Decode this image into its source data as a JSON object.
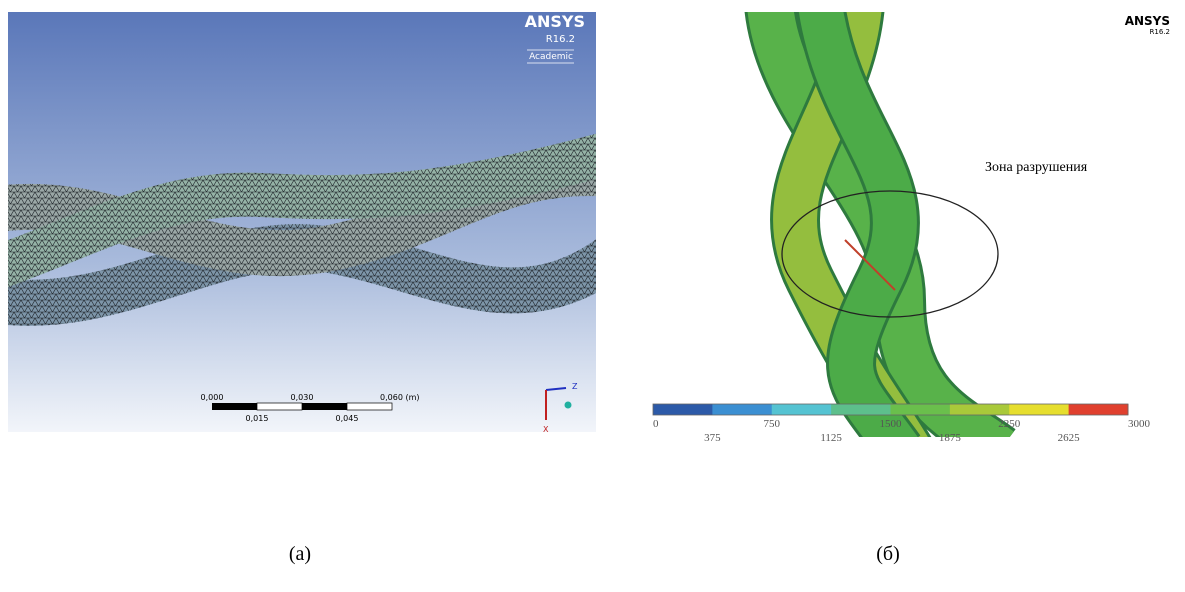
{
  "panel_a": {
    "logo": "ANSYS",
    "version": "R16.2",
    "license": "Academic",
    "scale_bar": {
      "top_labels": [
        "0,000",
        "0,030",
        "0,060 (m)"
      ],
      "bottom_labels": [
        "0,015",
        "0,045"
      ]
    },
    "axes": {
      "z": "Z",
      "x": "X"
    }
  },
  "panel_b": {
    "logo": "ANSYS",
    "version": "R16.2",
    "annotation": "Зона разрушения",
    "colorbar": {
      "colors": [
        "#2c5aa8",
        "#3b8fd2",
        "#55c3d2",
        "#5dbf8c",
        "#6abf4c",
        "#a9c93a",
        "#e6de2e",
        "#e0402e"
      ],
      "labels": [
        "0",
        "375",
        "750",
        "1125",
        "1500",
        "1875",
        "2250",
        "2625",
        "3000"
      ]
    }
  },
  "captions": [
    "(a)",
    "(б)"
  ]
}
